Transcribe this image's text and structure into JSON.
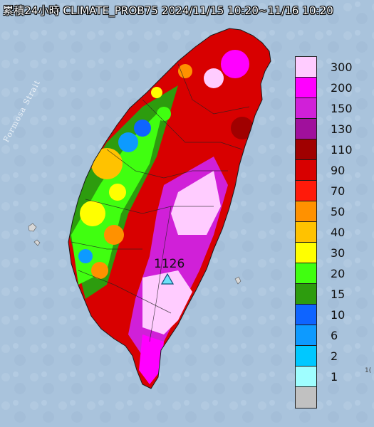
{
  "header": {
    "title": "累積24小時 CLIMATE_PROB75 2024/11/15 10:20~11/16 10:20"
  },
  "map": {
    "strait_label": "Formosa Strait",
    "max_station_label": "1126",
    "max_marker_icon": "triangle-marker-icon",
    "corner_text": "1("
  },
  "legend": {
    "items": [
      {
        "label": "300",
        "color": "#ffccff"
      },
      {
        "label": "200",
        "color": "#ff00ff"
      },
      {
        "label": "150",
        "color": "#d020d8"
      },
      {
        "label": "130",
        "color": "#a0109c"
      },
      {
        "label": "110",
        "color": "#a00000"
      },
      {
        "label": "90",
        "color": "#d80000"
      },
      {
        "label": "70",
        "color": "#ff1a0a"
      },
      {
        "label": "50",
        "color": "#ff9100"
      },
      {
        "label": "40",
        "color": "#ffc200"
      },
      {
        "label": "30",
        "color": "#ffff00"
      },
      {
        "label": "20",
        "color": "#40ff10"
      },
      {
        "label": "15",
        "color": "#2d9c0e"
      },
      {
        "label": "10",
        "color": "#0e64ff"
      },
      {
        "label": "6",
        "color": "#0d9aff"
      },
      {
        "label": "2",
        "color": "#00c8ff"
      },
      {
        "label": "1",
        "color": "#9ffeff"
      },
      {
        "label": "",
        "color": "#c1c1c1"
      }
    ]
  }
}
